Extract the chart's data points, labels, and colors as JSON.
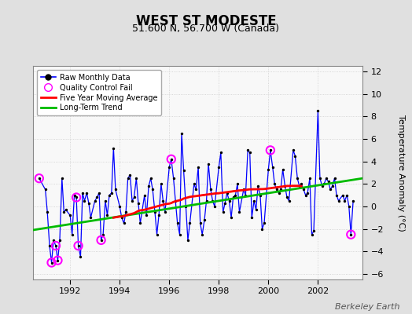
{
  "title": "WEST ST MODESTE",
  "subtitle": "51.600 N, 56.700 W (Canada)",
  "ylabel": "Temperature Anomaly (°C)",
  "watermark": "Berkeley Earth",
  "xlim": [
    1990.5,
    2003.8
  ],
  "ylim": [
    -6.5,
    12.5
  ],
  "yticks": [
    -6,
    -4,
    -2,
    0,
    2,
    4,
    6,
    8,
    10,
    12
  ],
  "xticks": [
    1992,
    1994,
    1996,
    1998,
    2000,
    2002
  ],
  "bg_color": "#e0e0e0",
  "plot_bg_color": "#f8f8f8",
  "raw_line_color": "#0000ff",
  "raw_dot_color": "#000000",
  "qc_color": "magenta",
  "ma_color": "#ff0000",
  "trend_color": "#00bb00",
  "raw_data": [
    [
      1990.75,
      2.5
    ],
    [
      1991.0,
      1.5
    ],
    [
      1991.08,
      -0.5
    ],
    [
      1991.17,
      -3.5
    ],
    [
      1991.25,
      -5.0
    ],
    [
      1991.33,
      -3.0
    ],
    [
      1991.42,
      -3.5
    ],
    [
      1991.5,
      -4.8
    ],
    [
      1991.58,
      -3.0
    ],
    [
      1991.67,
      2.5
    ],
    [
      1991.75,
      -0.5
    ],
    [
      1991.83,
      -0.3
    ],
    [
      1992.0,
      -0.8
    ],
    [
      1992.08,
      -2.5
    ],
    [
      1992.17,
      1.0
    ],
    [
      1992.25,
      0.8
    ],
    [
      1992.33,
      -3.5
    ],
    [
      1992.42,
      -4.5
    ],
    [
      1992.5,
      1.2
    ],
    [
      1992.58,
      0.5
    ],
    [
      1992.67,
      1.2
    ],
    [
      1992.75,
      0.3
    ],
    [
      1992.83,
      -1.0
    ],
    [
      1993.0,
      0.5
    ],
    [
      1993.08,
      0.8
    ],
    [
      1993.17,
      1.2
    ],
    [
      1993.25,
      -3.0
    ],
    [
      1993.33,
      -2.5
    ],
    [
      1993.42,
      0.5
    ],
    [
      1993.5,
      -0.8
    ],
    [
      1993.58,
      1.0
    ],
    [
      1993.67,
      1.2
    ],
    [
      1993.75,
      5.2
    ],
    [
      1993.83,
      1.5
    ],
    [
      1994.0,
      0.0
    ],
    [
      1994.08,
      -1.0
    ],
    [
      1994.17,
      -1.5
    ],
    [
      1994.25,
      -0.5
    ],
    [
      1994.33,
      2.5
    ],
    [
      1994.42,
      2.8
    ],
    [
      1994.5,
      0.5
    ],
    [
      1994.58,
      0.8
    ],
    [
      1994.67,
      2.5
    ],
    [
      1994.75,
      0.3
    ],
    [
      1994.83,
      -1.5
    ],
    [
      1995.0,
      1.0
    ],
    [
      1995.08,
      -0.8
    ],
    [
      1995.17,
      1.8
    ],
    [
      1995.25,
      2.5
    ],
    [
      1995.33,
      1.5
    ],
    [
      1995.42,
      -0.5
    ],
    [
      1995.5,
      -2.5
    ],
    [
      1995.58,
      -0.8
    ],
    [
      1995.67,
      2.0
    ],
    [
      1995.75,
      0.5
    ],
    [
      1995.83,
      -0.5
    ],
    [
      1996.0,
      3.5
    ],
    [
      1996.08,
      4.2
    ],
    [
      1996.17,
      2.5
    ],
    [
      1996.25,
      0.5
    ],
    [
      1996.33,
      -1.5
    ],
    [
      1996.42,
      -2.5
    ],
    [
      1996.5,
      6.5
    ],
    [
      1996.58,
      3.2
    ],
    [
      1996.67,
      0.0
    ],
    [
      1996.75,
      -3.0
    ],
    [
      1996.83,
      -1.5
    ],
    [
      1997.0,
      2.0
    ],
    [
      1997.08,
      1.5
    ],
    [
      1997.17,
      3.5
    ],
    [
      1997.25,
      -1.5
    ],
    [
      1997.33,
      -2.5
    ],
    [
      1997.42,
      -1.2
    ],
    [
      1997.5,
      0.5
    ],
    [
      1997.58,
      3.8
    ],
    [
      1997.67,
      1.5
    ],
    [
      1997.75,
      0.5
    ],
    [
      1997.83,
      0.0
    ],
    [
      1998.0,
      3.5
    ],
    [
      1998.08,
      4.8
    ],
    [
      1998.17,
      -0.5
    ],
    [
      1998.25,
      0.3
    ],
    [
      1998.33,
      1.2
    ],
    [
      1998.42,
      0.5
    ],
    [
      1998.5,
      -1.0
    ],
    [
      1998.58,
      0.8
    ],
    [
      1998.67,
      1.0
    ],
    [
      1998.75,
      2.0
    ],
    [
      1998.83,
      -0.5
    ],
    [
      1999.0,
      1.5
    ],
    [
      1999.08,
      1.0
    ],
    [
      1999.17,
      5.0
    ],
    [
      1999.25,
      4.8
    ],
    [
      1999.33,
      -1.0
    ],
    [
      1999.42,
      0.5
    ],
    [
      1999.5,
      -0.3
    ],
    [
      1999.58,
      1.8
    ],
    [
      1999.67,
      1.0
    ],
    [
      1999.75,
      -2.0
    ],
    [
      1999.83,
      -1.5
    ],
    [
      2000.0,
      3.3
    ],
    [
      2000.08,
      5.0
    ],
    [
      2000.17,
      3.5
    ],
    [
      2000.25,
      2.0
    ],
    [
      2000.33,
      1.5
    ],
    [
      2000.42,
      1.2
    ],
    [
      2000.5,
      1.5
    ],
    [
      2000.58,
      3.3
    ],
    [
      2000.67,
      1.8
    ],
    [
      2000.75,
      0.8
    ],
    [
      2000.83,
      0.5
    ],
    [
      2001.0,
      5.0
    ],
    [
      2001.08,
      4.5
    ],
    [
      2001.17,
      2.5
    ],
    [
      2001.25,
      1.8
    ],
    [
      2001.33,
      2.0
    ],
    [
      2001.42,
      1.5
    ],
    [
      2001.5,
      1.0
    ],
    [
      2001.58,
      1.2
    ],
    [
      2001.67,
      2.5
    ],
    [
      2001.75,
      -2.5
    ],
    [
      2001.83,
      -2.2
    ],
    [
      2002.0,
      8.5
    ],
    [
      2002.08,
      2.5
    ],
    [
      2002.17,
      1.8
    ],
    [
      2002.25,
      2.0
    ],
    [
      2002.33,
      2.5
    ],
    [
      2002.42,
      2.2
    ],
    [
      2002.5,
      1.5
    ],
    [
      2002.58,
      1.8
    ],
    [
      2002.67,
      2.5
    ],
    [
      2002.75,
      1.0
    ],
    [
      2002.83,
      0.5
    ],
    [
      2003.0,
      1.0
    ],
    [
      2003.08,
      0.5
    ],
    [
      2003.17,
      1.0
    ],
    [
      2003.25,
      0.0
    ],
    [
      2003.33,
      -2.5
    ],
    [
      2003.42,
      0.5
    ]
  ],
  "qc_fail_points": [
    [
      1990.75,
      2.5
    ],
    [
      1991.25,
      -5.0
    ],
    [
      1991.42,
      -3.5
    ],
    [
      1991.5,
      -4.8
    ],
    [
      1992.25,
      0.8
    ],
    [
      1992.33,
      -3.5
    ],
    [
      1993.25,
      -3.0
    ],
    [
      1996.08,
      4.2
    ],
    [
      2000.08,
      5.0
    ],
    [
      2003.33,
      -2.5
    ]
  ],
  "moving_avg": [
    [
      1993.75,
      -1.0
    ],
    [
      1994.0,
      -0.9
    ],
    [
      1994.08,
      -0.9
    ],
    [
      1994.17,
      -0.85
    ],
    [
      1994.25,
      -0.8
    ],
    [
      1994.33,
      -0.75
    ],
    [
      1994.42,
      -0.7
    ],
    [
      1994.5,
      -0.65
    ],
    [
      1994.58,
      -0.6
    ],
    [
      1994.67,
      -0.5
    ],
    [
      1994.75,
      -0.4
    ],
    [
      1994.83,
      -0.35
    ],
    [
      1995.0,
      -0.3
    ],
    [
      1995.08,
      -0.25
    ],
    [
      1995.17,
      -0.2
    ],
    [
      1995.25,
      -0.15
    ],
    [
      1995.33,
      -0.1
    ],
    [
      1995.42,
      -0.05
    ],
    [
      1995.5,
      0.0
    ],
    [
      1995.58,
      0.05
    ],
    [
      1995.67,
      0.1
    ],
    [
      1995.75,
      0.15
    ],
    [
      1995.83,
      0.2
    ],
    [
      1996.0,
      0.25
    ],
    [
      1996.08,
      0.3
    ],
    [
      1996.17,
      0.4
    ],
    [
      1996.25,
      0.45
    ],
    [
      1996.33,
      0.5
    ],
    [
      1996.42,
      0.55
    ],
    [
      1996.5,
      0.6
    ],
    [
      1996.58,
      0.7
    ],
    [
      1996.67,
      0.75
    ],
    [
      1996.75,
      0.8
    ],
    [
      1996.83,
      0.85
    ],
    [
      1997.0,
      0.9
    ],
    [
      1997.08,
      0.92
    ],
    [
      1997.17,
      0.95
    ],
    [
      1997.25,
      0.97
    ],
    [
      1997.33,
      1.0
    ],
    [
      1997.42,
      1.02
    ],
    [
      1997.5,
      1.05
    ],
    [
      1997.58,
      1.07
    ],
    [
      1997.67,
      1.1
    ],
    [
      1997.75,
      1.12
    ],
    [
      1997.83,
      1.15
    ],
    [
      1998.0,
      1.17
    ],
    [
      1998.08,
      1.2
    ],
    [
      1998.17,
      1.22
    ],
    [
      1998.25,
      1.25
    ],
    [
      1998.33,
      1.27
    ],
    [
      1998.42,
      1.3
    ],
    [
      1998.5,
      1.32
    ],
    [
      1998.58,
      1.35
    ],
    [
      1998.67,
      1.37
    ],
    [
      1998.75,
      1.4
    ],
    [
      1998.83,
      1.42
    ],
    [
      1999.0,
      1.45
    ],
    [
      1999.08,
      1.47
    ],
    [
      1999.17,
      1.5
    ],
    [
      1999.25,
      1.52
    ],
    [
      1999.33,
      1.52
    ],
    [
      1999.42,
      1.53
    ],
    [
      1999.5,
      1.53
    ],
    [
      1999.58,
      1.53
    ],
    [
      1999.67,
      1.54
    ],
    [
      1999.75,
      1.54
    ],
    [
      1999.83,
      1.55
    ],
    [
      2000.0,
      1.6
    ],
    [
      2000.08,
      1.62
    ],
    [
      2000.17,
      1.65
    ],
    [
      2000.25,
      1.67
    ],
    [
      2000.33,
      1.7
    ],
    [
      2000.42,
      1.72
    ],
    [
      2000.5,
      1.75
    ],
    [
      2000.58,
      1.77
    ],
    [
      2000.67,
      1.8
    ],
    [
      2000.75,
      1.82
    ],
    [
      2000.83,
      1.82
    ],
    [
      2001.0,
      1.83
    ],
    [
      2001.08,
      1.83
    ],
    [
      2001.17,
      1.83
    ],
    [
      2001.25,
      1.82
    ],
    [
      2001.33,
      1.8
    ]
  ],
  "trend_line": [
    [
      1990.5,
      -2.1
    ],
    [
      2003.8,
      2.5
    ]
  ]
}
